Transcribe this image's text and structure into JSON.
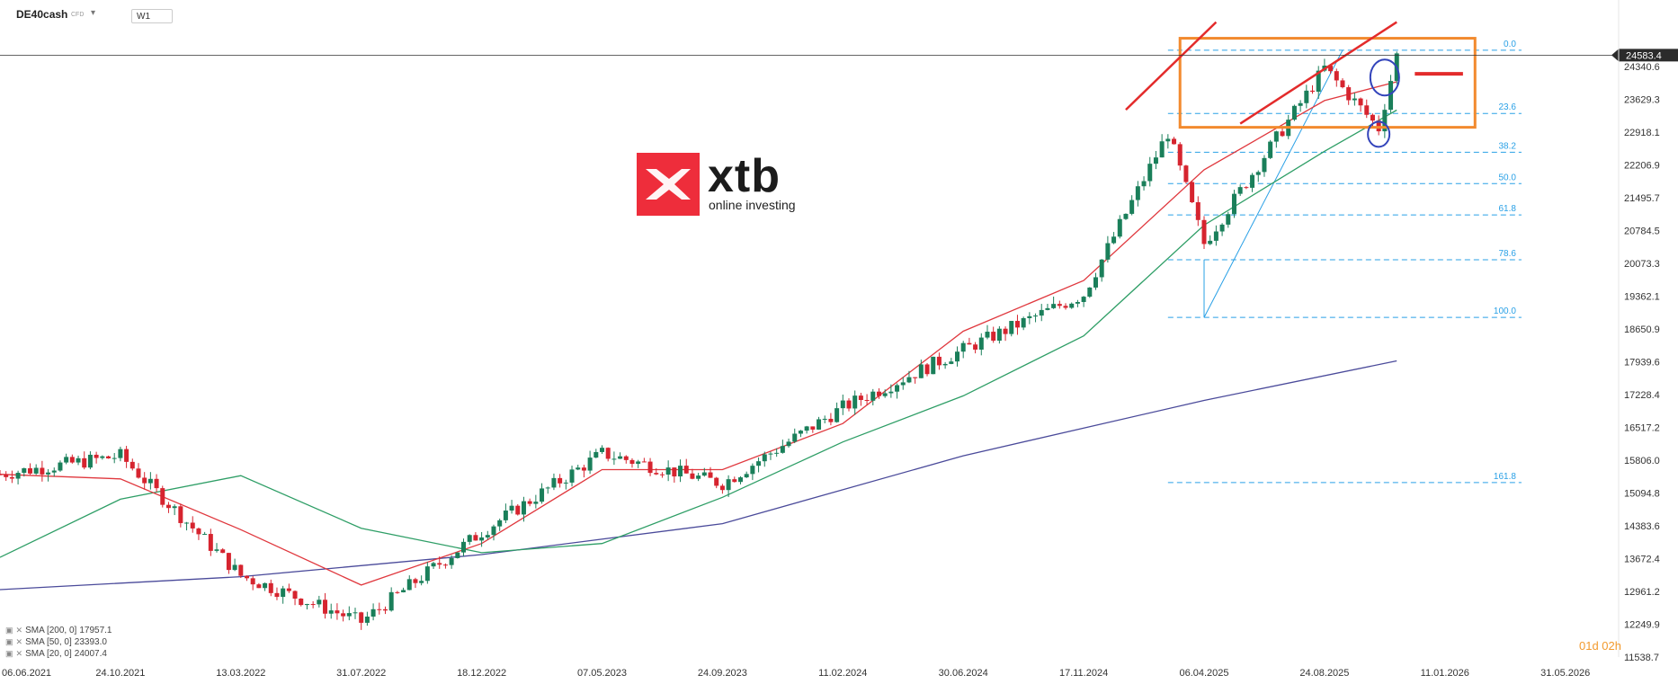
{
  "header": {
    "symbol": "DE40cash",
    "symbol_sub": "CFD",
    "interval": "W1"
  },
  "logo": {
    "word": "xtb",
    "tagline": "online investing"
  },
  "indicators": [
    {
      "label": "SMA [200, 0]",
      "value": "17957.1",
      "color": "#4a4a9a"
    },
    {
      "label": "SMA [50, 0]",
      "value": "23393.0",
      "color": "#2e9e66"
    },
    {
      "label": "SMA [20, 0]",
      "value": "24007.4",
      "color": "#e0383e"
    }
  ],
  "countdown": "01d 02h",
  "price_axis": {
    "labels": [
      "24340.6",
      "23629.3",
      "22918.1",
      "22206.9",
      "21495.7",
      "20784.5",
      "20073.3",
      "19362.1",
      "18650.9",
      "17939.6",
      "17228.4",
      "16517.2",
      "15806.0",
      "15094.8",
      "14383.6",
      "13672.4",
      "12961.2",
      "12249.9",
      "11538.7"
    ],
    "current_price": "24583.4"
  },
  "time_axis": {
    "labels": [
      "06.06.2021",
      "24.10.2021",
      "13.03.2022",
      "31.07.2022",
      "18.12.2022",
      "07.05.2023",
      "24.09.2023",
      "11.02.2024",
      "30.06.2024",
      "17.11.2024",
      "06.04.2025",
      "24.08.2025",
      "11.01.2026",
      "31.05.2026"
    ]
  },
  "fib_levels": [
    {
      "label": "0.0",
      "price": 24690
    },
    {
      "label": "23.6",
      "price": 23320
    },
    {
      "label": "38.2",
      "price": 22480
    },
    {
      "label": "50.0",
      "price": 21800
    },
    {
      "label": "61.8",
      "price": 21120
    },
    {
      "label": "78.6",
      "price": 20150
    },
    {
      "label": "100.0",
      "price": 18900
    },
    {
      "label": "161.8",
      "price": 15320
    }
  ],
  "chart_data": {
    "type": "candlestick",
    "title": "",
    "xlabel": "",
    "ylabel": "",
    "ylim": [
      11538.7,
      25000
    ],
    "x_range": [
      "2021-06-06",
      "2026-08-01"
    ],
    "series": [
      {
        "name": "SMA [200, 0]",
        "color": "#4a4a9a",
        "points": [
          [
            "2021-06-06",
            13000
          ],
          [
            "2022-03-13",
            13280
          ],
          [
            "2022-12-18",
            13760
          ],
          [
            "2023-09-24",
            14430
          ],
          [
            "2024-06-30",
            15900
          ],
          [
            "2025-04-06",
            17100
          ],
          [
            "2025-11-16",
            17957
          ]
        ]
      },
      {
        "name": "SMA [50, 0]",
        "color": "#2e9e66",
        "points": [
          [
            "2021-06-06",
            13700
          ],
          [
            "2021-10-24",
            14960
          ],
          [
            "2022-03-13",
            15470
          ],
          [
            "2022-07-31",
            14330
          ],
          [
            "2022-12-18",
            13800
          ],
          [
            "2023-05-07",
            14000
          ],
          [
            "2023-09-24",
            15000
          ],
          [
            "2024-02-11",
            16200
          ],
          [
            "2024-06-30",
            17200
          ],
          [
            "2024-11-17",
            18500
          ],
          [
            "2025-04-06",
            20900
          ],
          [
            "2025-08-24",
            22500
          ],
          [
            "2025-11-16",
            23393
          ]
        ]
      },
      {
        "name": "SMA [20, 0]",
        "color": "#e0383e",
        "points": [
          [
            "2021-06-06",
            15500
          ],
          [
            "2021-10-24",
            15400
          ],
          [
            "2022-03-13",
            14300
          ],
          [
            "2022-07-31",
            13100
          ],
          [
            "2022-12-18",
            14000
          ],
          [
            "2023-05-07",
            15600
          ],
          [
            "2023-09-24",
            15600
          ],
          [
            "2024-02-11",
            16600
          ],
          [
            "2024-06-30",
            18600
          ],
          [
            "2024-11-17",
            19700
          ],
          [
            "2025-04-06",
            22100
          ],
          [
            "2025-08-24",
            23600
          ],
          [
            "2025-11-16",
            24007
          ]
        ]
      },
      {
        "name": "price",
        "color": "#1a7f5a",
        "points": [
          [
            "2021-06-06",
            15500
          ],
          [
            "2021-10-24",
            15900
          ],
          [
            "2022-03-13",
            13300
          ],
          [
            "2022-07-31",
            12300
          ],
          [
            "2022-12-18",
            14250
          ],
          [
            "2023-05-07",
            15950
          ],
          [
            "2023-09-24",
            15300
          ],
          [
            "2024-02-11",
            16950
          ],
          [
            "2024-06-30",
            18200
          ],
          [
            "2024-11-17",
            19400
          ],
          [
            "2025-02-23",
            22900
          ],
          [
            "2025-04-06",
            20500
          ],
          [
            "2025-08-24",
            24300
          ],
          [
            "2025-10-26",
            23000
          ],
          [
            "2025-11-16",
            24583
          ]
        ]
      }
    ]
  },
  "colors": {
    "up": "#1a7f5a",
    "down": "#d6242f",
    "box": "#f28a2e",
    "channel": "#e32b2b",
    "circle": "#3344bb",
    "fib": "#29a0e6"
  }
}
